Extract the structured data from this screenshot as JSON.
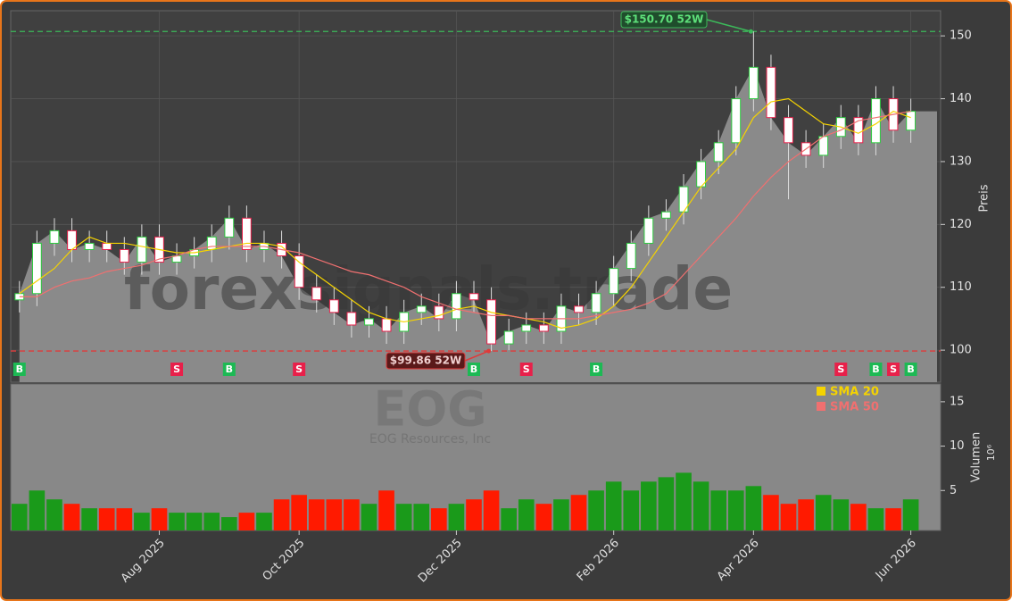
{
  "chart_data": {
    "type": "candlestick",
    "watermark": "forexsignals.trade",
    "symbol": "EOG",
    "company": "EOG Resources, Inc",
    "y_label": "Preis",
    "volume_label": "Volumen",
    "volume_unit": "10⁶",
    "categories": [
      null,
      null,
      null,
      null,
      null,
      null,
      null,
      null,
      "Aug 2025",
      null,
      null,
      null,
      null,
      null,
      null,
      null,
      "Oct 2025",
      null,
      null,
      null,
      null,
      null,
      null,
      null,
      null,
      "Dec 2025",
      null,
      null,
      null,
      null,
      null,
      null,
      null,
      null,
      "Feb 2026",
      null,
      null,
      null,
      null,
      null,
      null,
      null,
      "Apr 2026",
      null,
      null,
      null,
      null,
      null,
      null,
      null,
      null,
      "Jun 2026",
      null
    ],
    "open": [
      108,
      109,
      117,
      119,
      116,
      117,
      116,
      114,
      118,
      114,
      115,
      116,
      118,
      121,
      116,
      117,
      115,
      110,
      108,
      106,
      104,
      105,
      103,
      106,
      107,
      105,
      109,
      108,
      101,
      103,
      104,
      103,
      107,
      106,
      109,
      113,
      117,
      121,
      122,
      126,
      130,
      133,
      140,
      145,
      137,
      133,
      131,
      134,
      137,
      133,
      140,
      135,
      null
    ],
    "high": [
      111,
      119,
      121,
      121,
      119,
      119,
      118,
      120,
      120,
      117,
      118,
      120,
      123,
      123,
      119,
      119,
      117,
      112,
      110,
      108,
      107,
      107,
      108,
      109,
      109,
      111,
      111,
      110,
      105,
      106,
      106,
      109,
      109,
      111,
      115,
      119,
      123,
      124,
      128,
      132,
      135,
      142,
      150.7,
      147,
      139,
      135,
      136,
      139,
      139,
      142,
      142,
      140,
      null
    ],
    "low": [
      106,
      107,
      115,
      114,
      114,
      114,
      112,
      112,
      112,
      112,
      113,
      114,
      116,
      114,
      114,
      113,
      108,
      106,
      104,
      102,
      102,
      101,
      101,
      104,
      103,
      103,
      106,
      99.86,
      100,
      101,
      101,
      101,
      104,
      104,
      107,
      111,
      115,
      119,
      120,
      124,
      128,
      131,
      138,
      135,
      124,
      129,
      129,
      132,
      131,
      131,
      133,
      133,
      null
    ],
    "close": [
      109,
      117,
      119,
      116,
      117,
      116,
      114,
      118,
      114,
      115,
      116,
      118,
      121,
      116,
      117,
      115,
      110,
      108,
      106,
      104,
      105,
      103,
      106,
      107,
      105,
      109,
      108,
      101,
      103,
      104,
      103,
      107,
      106,
      109,
      113,
      117,
      121,
      122,
      126,
      130,
      133,
      140,
      145,
      137,
      133,
      131,
      134,
      137,
      133,
      140,
      135,
      138,
      null
    ],
    "series": [
      {
        "name": "SMA 20",
        "color": "#f5d300",
        "values": [
          109,
          111,
          113,
          116,
          118,
          117,
          117,
          116.5,
          116,
          115.5,
          115.5,
          116,
          116.5,
          117,
          117,
          116.5,
          114,
          112,
          110,
          108,
          106,
          105,
          104.5,
          105,
          105.5,
          106.5,
          107,
          106,
          105.5,
          105,
          104.5,
          103.5,
          104,
          105,
          107,
          110,
          114,
          118,
          122,
          126,
          129,
          132,
          137,
          139.5,
          140,
          138,
          136,
          135.5,
          134.5,
          136,
          138,
          137,
          null
        ]
      },
      {
        "name": "SMA 50",
        "color": "#f07070",
        "values": [
          108.5,
          108.5,
          110,
          111,
          111.5,
          112.5,
          113,
          113.5,
          114.5,
          115,
          116,
          116.5,
          116.5,
          116.5,
          116.5,
          116,
          115.5,
          114.5,
          113.5,
          112.5,
          112,
          111,
          110,
          108.5,
          107.5,
          106.5,
          106,
          105.5,
          105.5,
          105,
          105,
          105,
          105,
          105.5,
          106,
          106.5,
          107.5,
          109,
          112,
          115,
          118,
          121,
          124.5,
          127.5,
          130,
          132,
          134,
          135,
          136.5,
          137,
          137.5,
          138,
          null
        ]
      }
    ],
    "volume": [
      3.5,
      5,
      4,
      3.5,
      3,
      3,
      3,
      2.5,
      3,
      2.5,
      2.5,
      2.5,
      2,
      2.5,
      2.5,
      4,
      4.5,
      4,
      4,
      4,
      3.5,
      5,
      3.5,
      3.5,
      3,
      3.5,
      4,
      5,
      3,
      4,
      3.5,
      4,
      4.5,
      5,
      6,
      5,
      6,
      6.5,
      7,
      6,
      5,
      5,
      5.5,
      4.5,
      3.5,
      4,
      4.5,
      4,
      3.5,
      3,
      3,
      4,
      null
    ],
    "signals": [
      "B",
      null,
      null,
      null,
      null,
      null,
      null,
      null,
      null,
      "S",
      null,
      null,
      "B",
      null,
      null,
      null,
      "S",
      null,
      null,
      null,
      null,
      null,
      null,
      null,
      null,
      null,
      "B",
      null,
      null,
      "S",
      null,
      null,
      null,
      "B",
      null,
      null,
      null,
      null,
      null,
      null,
      null,
      null,
      null,
      null,
      null,
      null,
      null,
      "S",
      null,
      "B",
      "S",
      "B",
      null
    ],
    "buy_color": "#1db954",
    "sell_color": "#e8204a",
    "up_color": "#1a9a1a",
    "down_color": "#ff1a00",
    "high_52w": {
      "value": 150.7,
      "label": "$150.70 52W",
      "color": "#3cb95a"
    },
    "low_52w": {
      "value": 99.86,
      "label": "$99.86 52W",
      "color": "#e03a3a"
    },
    "ylim": [
      94.9,
      154
    ],
    "yticks": [
      100,
      110,
      120,
      130,
      140,
      150
    ],
    "volume_ylim": [
      0.5,
      17
    ],
    "volume_yticks": [
      5,
      10,
      15
    ],
    "grid": true
  }
}
